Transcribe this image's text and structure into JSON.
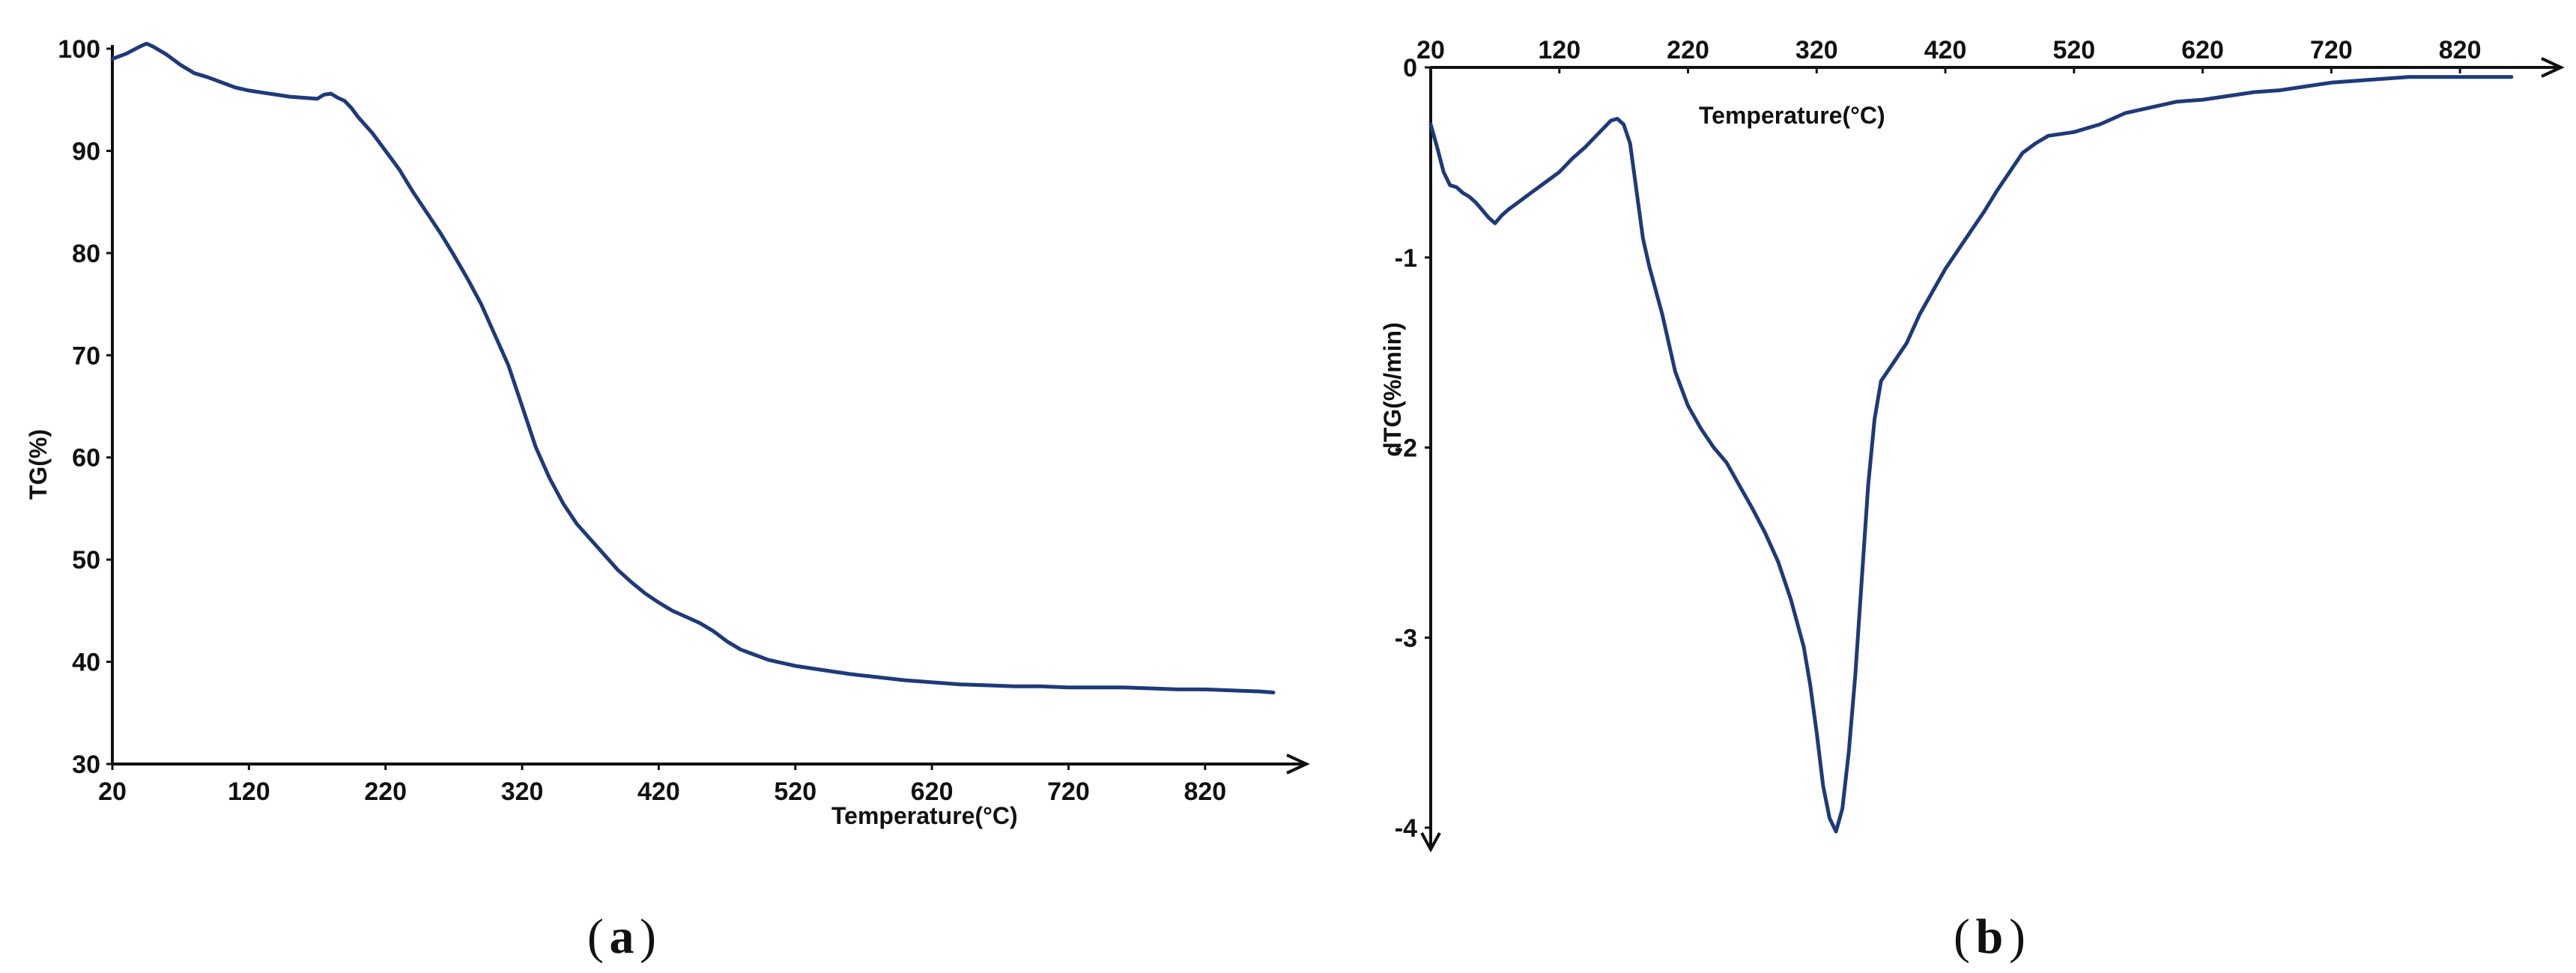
{
  "chart_data": [
    {
      "type": "line",
      "panel_label": "a",
      "ylabel": "TG(%)",
      "xlabel": "Temperature(°C)",
      "xlim": [
        20,
        870
      ],
      "ylim": [
        30,
        100
      ],
      "xticks": [
        "20",
        "120",
        "220",
        "320",
        "420",
        "520",
        "620",
        "720",
        "820"
      ],
      "yticks": [
        "30",
        "40",
        "50",
        "60",
        "70",
        "80",
        "90",
        "100"
      ],
      "series_color": "#1f3a7a",
      "x": [
        20,
        30,
        40,
        45,
        50,
        60,
        70,
        80,
        90,
        100,
        110,
        120,
        130,
        140,
        150,
        160,
        170,
        175,
        180,
        185,
        190,
        195,
        200,
        210,
        220,
        230,
        240,
        250,
        260,
        270,
        280,
        290,
        300,
        310,
        320,
        330,
        340,
        350,
        360,
        370,
        380,
        390,
        400,
        410,
        420,
        430,
        440,
        450,
        460,
        470,
        480,
        490,
        500,
        510,
        520,
        540,
        560,
        580,
        600,
        620,
        640,
        660,
        680,
        700,
        720,
        740,
        760,
        780,
        800,
        820,
        840,
        860,
        870
      ],
      "y": [
        99.0,
        99.5,
        100.2,
        100.5,
        100.2,
        99.4,
        98.4,
        97.6,
        97.2,
        96.7,
        96.2,
        95.9,
        95.7,
        95.5,
        95.3,
        95.2,
        95.1,
        95.5,
        95.6,
        95.2,
        94.9,
        94.2,
        93.3,
        91.8,
        90.0,
        88.2,
        86.0,
        84.0,
        82.0,
        79.8,
        77.5,
        75.0,
        72.0,
        69.0,
        65.0,
        61.0,
        58.0,
        55.5,
        53.5,
        52.0,
        50.5,
        49.0,
        47.8,
        46.7,
        45.8,
        45.0,
        44.4,
        43.8,
        43.0,
        42.0,
        41.2,
        40.7,
        40.2,
        39.9,
        39.6,
        39.2,
        38.8,
        38.5,
        38.2,
        38.0,
        37.8,
        37.7,
        37.6,
        37.6,
        37.5,
        37.5,
        37.5,
        37.4,
        37.3,
        37.3,
        37.2,
        37.1,
        37.0
      ]
    },
    {
      "type": "line",
      "panel_label": "b",
      "ylabel": "dTG(%/min)",
      "xlabel": "Temperature(°C)",
      "xlim": [
        20,
        870
      ],
      "ylim": [
        -4,
        0
      ],
      "xticks": [
        "20",
        "120",
        "220",
        "320",
        "420",
        "520",
        "620",
        "720",
        "820"
      ],
      "yticks": [
        "0",
        "-1",
        "-2",
        "-3",
        "-4"
      ],
      "series_color": "#1f3a7a",
      "x": [
        20,
        25,
        30,
        35,
        40,
        45,
        50,
        55,
        60,
        65,
        70,
        75,
        80,
        90,
        100,
        110,
        120,
        130,
        140,
        150,
        160,
        165,
        170,
        175,
        180,
        185,
        190,
        200,
        210,
        220,
        230,
        240,
        250,
        260,
        270,
        280,
        290,
        300,
        310,
        315,
        320,
        325,
        330,
        335,
        340,
        345,
        350,
        355,
        360,
        365,
        370,
        375,
        380,
        390,
        400,
        410,
        420,
        430,
        440,
        450,
        460,
        470,
        480,
        490,
        500,
        510,
        520,
        540,
        560,
        580,
        600,
        620,
        640,
        660,
        680,
        700,
        720,
        740,
        760,
        780,
        800,
        820,
        840,
        860
      ],
      "y": [
        -0.3,
        -0.42,
        -0.55,
        -0.62,
        -0.63,
        -0.66,
        -0.68,
        -0.71,
        -0.75,
        -0.79,
        -0.82,
        -0.78,
        -0.75,
        -0.7,
        -0.65,
        -0.6,
        -0.55,
        -0.48,
        -0.42,
        -0.35,
        -0.28,
        -0.27,
        -0.3,
        -0.4,
        -0.65,
        -0.9,
        -1.05,
        -1.3,
        -1.6,
        -1.78,
        -1.9,
        -2.0,
        -2.08,
        -2.2,
        -2.32,
        -2.45,
        -2.6,
        -2.8,
        -3.05,
        -3.25,
        -3.5,
        -3.78,
        -3.95,
        -4.02,
        -3.9,
        -3.6,
        -3.2,
        -2.7,
        -2.2,
        -1.85,
        -1.65,
        -1.6,
        -1.55,
        -1.45,
        -1.3,
        -1.18,
        -1.06,
        -0.96,
        -0.86,
        -0.76,
        -0.65,
        -0.55,
        -0.45,
        -0.4,
        -0.36,
        -0.35,
        -0.34,
        -0.3,
        -0.24,
        -0.21,
        -0.18,
        -0.17,
        -0.15,
        -0.13,
        -0.12,
        -0.1,
        -0.08,
        -0.07,
        -0.06,
        -0.05,
        -0.05,
        -0.05,
        -0.05,
        -0.05
      ]
    }
  ]
}
